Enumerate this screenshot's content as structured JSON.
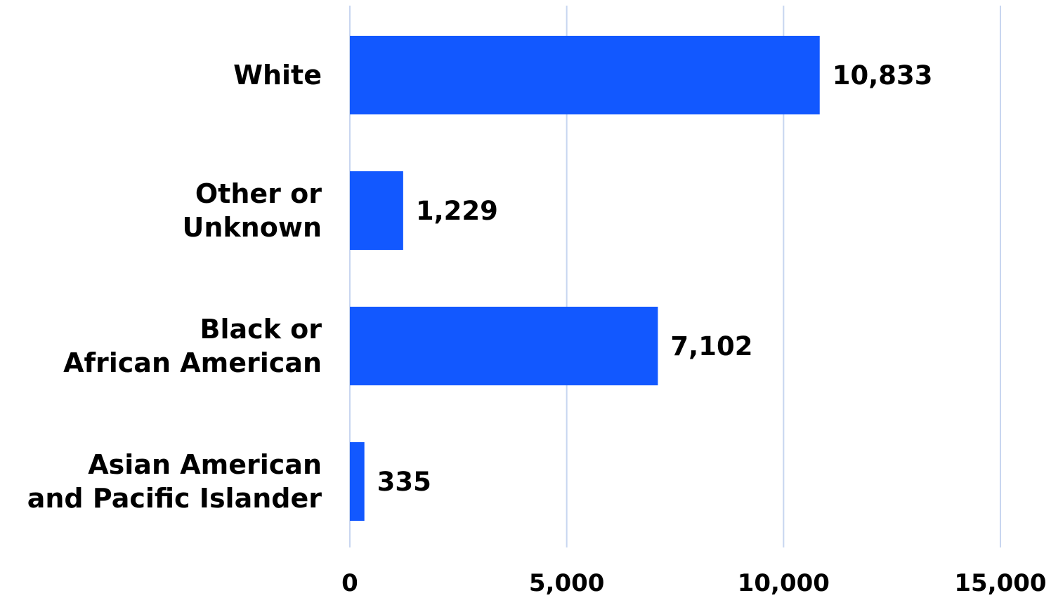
{
  "chart_data": {
    "type": "bar",
    "orientation": "horizontal",
    "categories": [
      [
        "White"
      ],
      [
        "Other or",
        "Unknown"
      ],
      [
        "Black or",
        "African American"
      ],
      [
        "Asian American",
        "and Pacific Islander"
      ]
    ],
    "values": [
      10833,
      1229,
      7102,
      335
    ],
    "value_labels": [
      "10,833",
      "1,229",
      "7,102",
      "335"
    ],
    "xlim": [
      0,
      15000
    ],
    "xticks": [
      0,
      5000,
      10000,
      15000
    ],
    "xtick_labels": [
      "0",
      "5,000",
      "10,000",
      "15,000"
    ],
    "grid": true,
    "legend": "none",
    "colors": {
      "bar": "#1258FF",
      "grid": "#C8D6F0",
      "text": "#000000"
    }
  }
}
